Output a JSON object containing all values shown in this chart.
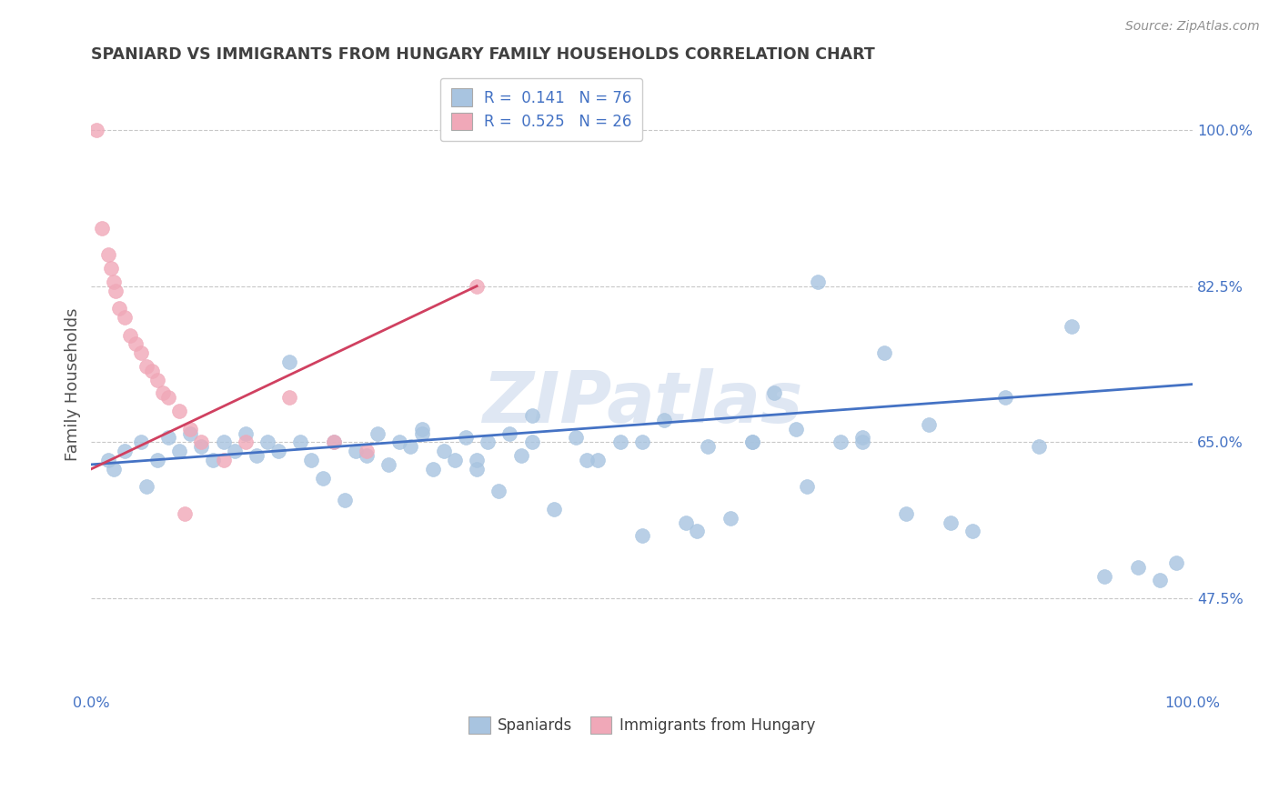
{
  "title": "SPANIARD VS IMMIGRANTS FROM HUNGARY FAMILY HOUSEHOLDS CORRELATION CHART",
  "source_text": "Source: ZipAtlas.com",
  "ylabel": "Family Households",
  "yticks": [
    47.5,
    65.0,
    82.5,
    100.0
  ],
  "ytick_labels": [
    "47.5%",
    "65.0%",
    "82.5%",
    "100.0%"
  ],
  "xlim": [
    0.0,
    100.0
  ],
  "ylim": [
    37.0,
    106.0
  ],
  "legend_r1": "R =  0.141",
  "legend_n1": "N = 76",
  "legend_r2": "R =  0.525",
  "legend_n2": "N = 26",
  "watermark": "ZIPatlas",
  "blue_color": "#a8c4e0",
  "pink_color": "#f0a8b8",
  "blue_line_color": "#4472c4",
  "pink_line_color": "#d04060",
  "title_color": "#404040",
  "tick_color": "#808080",
  "grid_color": "#c8c8c8",
  "blue_line_x": [
    0.0,
    100.0
  ],
  "blue_line_y": [
    62.5,
    71.5
  ],
  "pink_line_x": [
    0.0,
    35.0
  ],
  "pink_line_y": [
    62.0,
    82.5
  ],
  "blue_scatter_x": [
    1.5,
    2.0,
    3.0,
    4.5,
    5.0,
    6.0,
    7.0,
    8.0,
    9.0,
    10.0,
    11.0,
    12.0,
    13.0,
    14.0,
    15.0,
    16.0,
    17.0,
    18.0,
    19.0,
    20.0,
    21.0,
    22.0,
    23.0,
    24.0,
    25.0,
    26.0,
    27.0,
    28.0,
    29.0,
    30.0,
    31.0,
    32.0,
    33.0,
    34.0,
    35.0,
    36.0,
    37.0,
    38.0,
    39.0,
    40.0,
    42.0,
    44.0,
    46.0,
    48.0,
    50.0,
    52.0,
    54.0,
    56.0,
    58.0,
    60.0,
    62.0,
    64.0,
    66.0,
    68.0,
    70.0,
    72.0,
    74.0,
    76.0,
    78.0,
    80.0,
    83.0,
    86.0,
    89.0,
    92.0,
    95.0,
    97.0,
    98.5,
    30.0,
    35.0,
    40.0,
    45.0,
    50.0,
    55.0,
    60.0,
    65.0,
    70.0
  ],
  "blue_scatter_y": [
    63.0,
    62.0,
    64.0,
    65.0,
    60.0,
    63.0,
    65.5,
    64.0,
    66.0,
    64.5,
    63.0,
    65.0,
    64.0,
    66.0,
    63.5,
    65.0,
    64.0,
    74.0,
    65.0,
    63.0,
    61.0,
    65.0,
    58.5,
    64.0,
    63.5,
    66.0,
    62.5,
    65.0,
    64.5,
    66.5,
    62.0,
    64.0,
    63.0,
    65.5,
    63.0,
    65.0,
    59.5,
    66.0,
    63.5,
    68.0,
    57.5,
    65.5,
    63.0,
    65.0,
    54.5,
    67.5,
    56.0,
    64.5,
    56.5,
    65.0,
    70.5,
    66.5,
    83.0,
    65.0,
    65.5,
    75.0,
    57.0,
    67.0,
    56.0,
    55.0,
    70.0,
    64.5,
    78.0,
    50.0,
    51.0,
    49.5,
    51.5,
    66.0,
    62.0,
    65.0,
    63.0,
    65.0,
    55.0,
    65.0,
    60.0,
    65.0
  ],
  "pink_scatter_x": [
    0.5,
    1.0,
    1.5,
    1.8,
    2.0,
    2.2,
    2.5,
    3.0,
    3.5,
    4.0,
    4.5,
    5.0,
    5.5,
    6.0,
    6.5,
    7.0,
    8.0,
    9.0,
    10.0,
    12.0,
    14.0,
    18.0,
    25.0,
    35.0,
    22.0,
    8.5
  ],
  "pink_scatter_y": [
    100.0,
    89.0,
    86.0,
    84.5,
    83.0,
    82.0,
    80.0,
    79.0,
    77.0,
    76.0,
    75.0,
    73.5,
    73.0,
    72.0,
    70.5,
    70.0,
    68.5,
    66.5,
    65.0,
    63.0,
    65.0,
    70.0,
    64.0,
    82.5,
    65.0,
    57.0
  ]
}
